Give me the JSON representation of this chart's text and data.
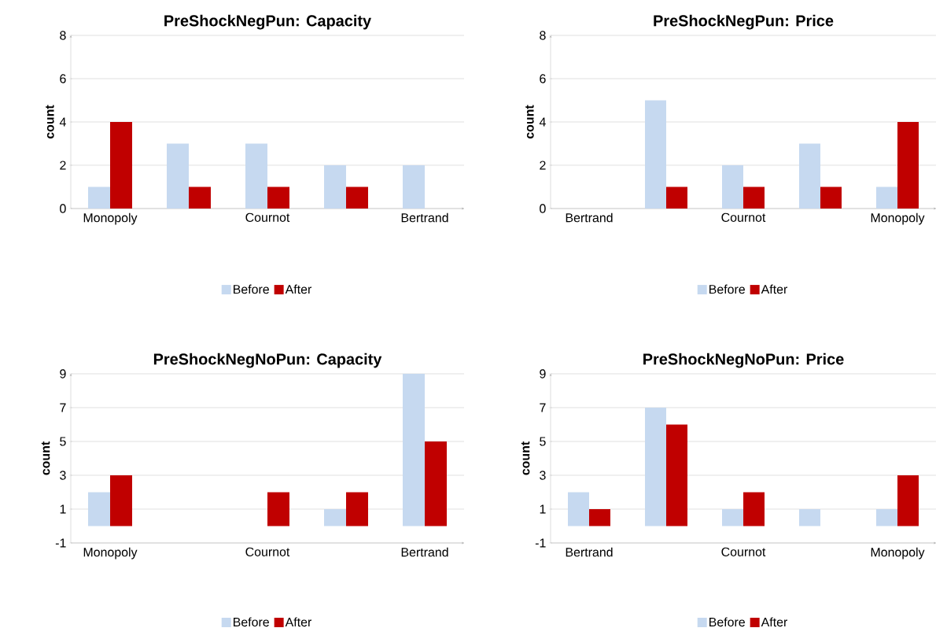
{
  "chart_data": [
    {
      "type": "bar",
      "title": "PreShockNegPun: Capacity",
      "ylabel": "count",
      "categories": [
        "Monopoly",
        null,
        "Cournot",
        null,
        "Bertrand"
      ],
      "series": [
        {
          "name": "Before",
          "color": "#c6d9f0",
          "values": [
            1,
            3,
            3,
            2,
            2
          ]
        },
        {
          "name": "After",
          "color": "#c00000",
          "values": [
            4,
            1,
            1,
            1,
            0
          ]
        }
      ],
      "ylim": [
        0,
        8
      ],
      "yticks": [
        0,
        2,
        4,
        6,
        8
      ],
      "grid": "y",
      "legend": "bottom"
    },
    {
      "type": "bar",
      "title": "PreShockNegPun: Price",
      "ylabel": "count",
      "categories": [
        "Bertrand",
        null,
        "Cournot",
        null,
        "Monopoly"
      ],
      "series": [
        {
          "name": "Before",
          "color": "#c6d9f0",
          "values": [
            0,
            5,
            2,
            3,
            1
          ]
        },
        {
          "name": "After",
          "color": "#c00000",
          "values": [
            0,
            1,
            1,
            1,
            4
          ]
        }
      ],
      "ylim": [
        0,
        8
      ],
      "yticks": [
        0,
        2,
        4,
        6,
        8
      ],
      "grid": "y",
      "legend": "bottom"
    },
    {
      "type": "bar",
      "title": "PreShockNegNoPun: Capacity",
      "ylabel": "count",
      "categories": [
        "Monopoly",
        null,
        "Cournot",
        null,
        "Bertrand"
      ],
      "series": [
        {
          "name": "Before",
          "color": "#c6d9f0",
          "values": [
            2,
            0,
            0,
            1,
            9
          ]
        },
        {
          "name": "After",
          "color": "#c00000",
          "values": [
            3,
            0,
            2,
            2,
            5
          ]
        }
      ],
      "ylim": [
        -1,
        9
      ],
      "yticks": [
        -1,
        1,
        3,
        5,
        7,
        9
      ],
      "grid": "y",
      "legend": "bottom"
    },
    {
      "type": "bar",
      "title": "PreShockNegNoPun: Price",
      "ylabel": "count",
      "categories": [
        "Bertrand",
        null,
        "Cournot",
        null,
        "Monopoly"
      ],
      "series": [
        {
          "name": "Before",
          "color": "#c6d9f0",
          "values": [
            2,
            7,
            1,
            1,
            1
          ]
        },
        {
          "name": "After",
          "color": "#c00000",
          "values": [
            1,
            6,
            2,
            0,
            3
          ]
        }
      ],
      "ylim": [
        -1,
        9
      ],
      "yticks": [
        -1,
        1,
        3,
        5,
        7,
        9
      ],
      "grid": "y",
      "legend": "bottom"
    }
  ]
}
